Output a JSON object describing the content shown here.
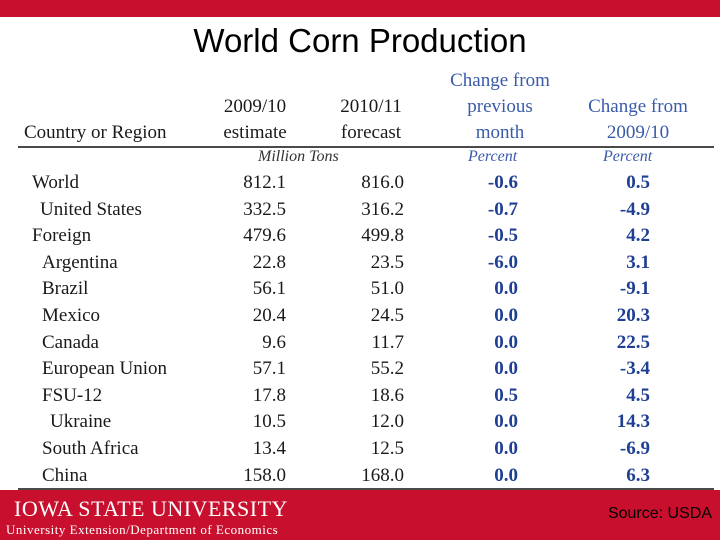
{
  "slide": {
    "title": "World Corn Production",
    "source": "Source: USDA",
    "footer_institution": "IOWA STATE UNIVERSITY",
    "footer_department": "University Extension/Department of Economics",
    "colors": {
      "brand_red": "#c8102e",
      "header_blue": "#3a5ba8",
      "percent_blue": "#1f3f94"
    }
  },
  "chart_data": {
    "type": "table",
    "title": "World Corn Production",
    "columns": [
      {
        "label": "Country or Region"
      },
      {
        "label": "2009/10 estimate",
        "line1": "2009/10",
        "line2": "estimate"
      },
      {
        "label": "2010/11 forecast",
        "line1": "2010/11",
        "line2": "forecast"
      },
      {
        "label": "Change from previous month",
        "line1": "Change from",
        "line2": "previous",
        "line3": "month"
      },
      {
        "label": "Change from 2009/10",
        "line1": "Change from",
        "line2": "2009/10"
      }
    ],
    "units": {
      "production": "Million Tons",
      "change_month": "Percent",
      "change_year": "Percent"
    },
    "rows": [
      {
        "region": "World",
        "y2009": "812.1",
        "y2010": "816.0",
        "chg_month": "-0.6",
        "chg_year": "0.5"
      },
      {
        "region": "United States",
        "y2009": "332.5",
        "y2010": "316.2",
        "chg_month": "-0.7",
        "chg_year": "-4.9"
      },
      {
        "region": "Foreign",
        "y2009": "479.6",
        "y2010": "499.8",
        "chg_month": "-0.5",
        "chg_year": "4.2"
      },
      {
        "region": "Argentina",
        "y2009": "22.8",
        "y2010": "23.5",
        "chg_month": "-6.0",
        "chg_year": "3.1"
      },
      {
        "region": "Brazil",
        "y2009": "56.1",
        "y2010": "51.0",
        "chg_month": "0.0",
        "chg_year": "-9.1"
      },
      {
        "region": "Mexico",
        "y2009": "20.4",
        "y2010": "24.5",
        "chg_month": "0.0",
        "chg_year": "20.3"
      },
      {
        "region": "Canada",
        "y2009": "9.6",
        "y2010": "11.7",
        "chg_month": "0.0",
        "chg_year": "22.5"
      },
      {
        "region": "European Union",
        "y2009": "57.1",
        "y2010": "55.2",
        "chg_month": "0.0",
        "chg_year": "-3.4"
      },
      {
        "region": "FSU-12",
        "y2009": "17.8",
        "y2010": "18.6",
        "chg_month": "0.5",
        "chg_year": "4.5"
      },
      {
        "region": "Ukraine",
        "y2009": "10.5",
        "y2010": "12.0",
        "chg_month": "0.0",
        "chg_year": "14.3"
      },
      {
        "region": "South Africa",
        "y2009": "13.4",
        "y2010": "12.5",
        "chg_month": "0.0",
        "chg_year": "-6.9"
      },
      {
        "region": "China",
        "y2009": "158.0",
        "y2010": "168.0",
        "chg_month": "0.0",
        "chg_year": "6.3"
      }
    ]
  }
}
